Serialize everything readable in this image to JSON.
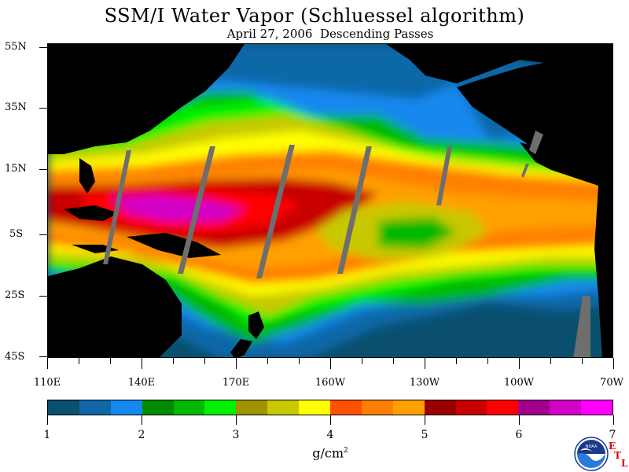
{
  "title": "SSM/I Water Vapor (Schluessel algorithm)",
  "subtitle": "April 27, 2006  Descending Passes",
  "lat_labels": [
    "55N",
    "35N",
    "15N",
    "5S",
    "25S",
    "45S"
  ],
  "lon_labels": [
    "110E",
    "140E",
    "170E",
    "160W",
    "130W",
    "100W",
    "70W"
  ],
  "colorbar": {
    "colors": [
      "#0a4f6e",
      "#1067a8",
      "#1488ee",
      "#008a00",
      "#00b800",
      "#00f000",
      "#9e9400",
      "#c8c800",
      "#ffff00",
      "#ff5000",
      "#ff8000",
      "#ffa000",
      "#9a0000",
      "#c80000",
      "#ff0000",
      "#a0008c",
      "#d200c8",
      "#ff00ff"
    ],
    "labels": [
      "1",
      "2",
      "3",
      "4",
      "5",
      "6",
      "7"
    ],
    "units": "g/cm",
    "units_sup": "2"
  },
  "logo": {
    "name": "NOAA",
    "etl_letters": [
      "E",
      "T",
      "L"
    ]
  },
  "colors": {
    "land": "#000000",
    "no_data": "#6e6e6e"
  }
}
